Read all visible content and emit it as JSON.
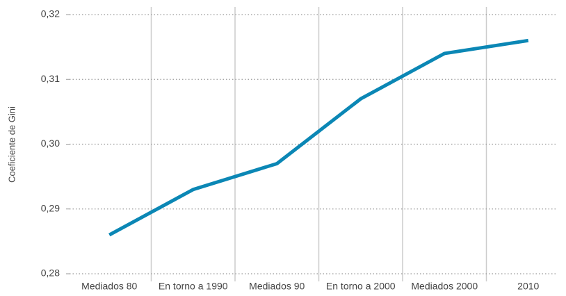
{
  "chart_data": {
    "type": "line",
    "y_label": "Coeficiente de Gini",
    "categories": [
      "Mediados 80",
      "En torno a 1990",
      "Mediados 90",
      "En torno a 2000",
      "Mediados 2000",
      "2010"
    ],
    "series": [
      {
        "name": "Coeficiente de Gini",
        "color": "#0b87b5",
        "values": [
          0.286,
          0.293,
          0.297,
          0.307,
          0.314,
          0.316
        ]
      }
    ],
    "ylim": [
      0.28,
      0.32
    ],
    "yticks": [
      {
        "value": 0.28,
        "label": "0,28"
      },
      {
        "value": 0.29,
        "label": "0,29"
      },
      {
        "value": 0.3,
        "label": "0,30"
      },
      {
        "value": 0.31,
        "label": "0,31"
      },
      {
        "value": 0.32,
        "label": "0,32"
      }
    ],
    "grid": true
  }
}
